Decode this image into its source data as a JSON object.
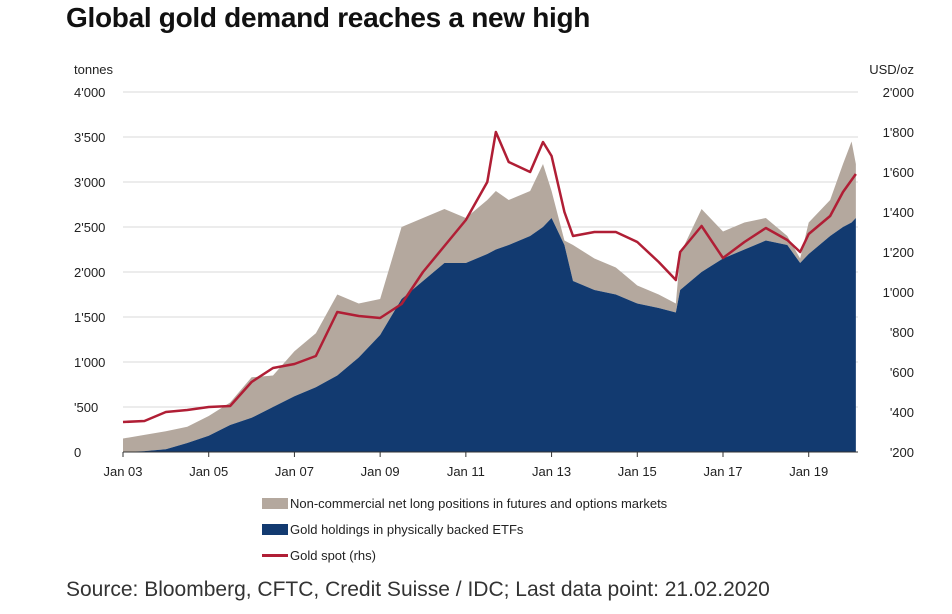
{
  "title": "Global gold demand reaches a new high",
  "source": "Source: Bloomberg, CFTC, Credit Suisse / IDC; Last data point: 21.02.2020",
  "colors": {
    "etf": "#123a70",
    "futures": "#b4a89e",
    "gold": "#b01e35",
    "grid": "#d8d8d8"
  },
  "chart_data": {
    "type": "area",
    "title": "Global gold demand reaches a new high",
    "left_axis": {
      "label": "tonnes",
      "range": [
        0,
        4000
      ],
      "ticks": [
        0,
        500,
        1000,
        1500,
        2000,
        2500,
        3000,
        3500,
        4000
      ],
      "tick_labels": [
        "0",
        "'500",
        "1'000",
        "1'500",
        "2'000",
        "2'500",
        "3'000",
        "3'500",
        "4'000"
      ]
    },
    "right_axis": {
      "label": "USD/oz",
      "range": [
        200,
        2000
      ],
      "ticks": [
        200,
        400,
        600,
        800,
        1000,
        1200,
        1400,
        1600,
        1800,
        2000
      ],
      "tick_labels": [
        "'200",
        "'400",
        "'600",
        "'800",
        "1'000",
        "1'200",
        "1'400",
        "1'600",
        "1'800",
        "2'000"
      ]
    },
    "x_axis": {
      "range": [
        2003.0,
        2020.15
      ],
      "ticks": [
        2003,
        2005,
        2007,
        2009,
        2011,
        2013,
        2015,
        2017,
        2019
      ],
      "tick_labels": [
        "Jan 03",
        "Jan 05",
        "Jan 07",
        "Jan 09",
        "Jan 11",
        "Jan 13",
        "Jan 15",
        "Jan 17",
        "Jan 19"
      ]
    },
    "grid": true,
    "legend_position": "bottom",
    "x": [
      2003.0,
      2003.5,
      2004.0,
      2004.5,
      2005.0,
      2005.5,
      2006.0,
      2006.5,
      2007.0,
      2007.5,
      2008.0,
      2008.5,
      2009.0,
      2009.5,
      2010.0,
      2010.5,
      2011.0,
      2011.5,
      2011.7,
      2012.0,
      2012.5,
      2012.8,
      2013.0,
      2013.3,
      2013.5,
      2014.0,
      2014.5,
      2015.0,
      2015.5,
      2015.9,
      2016.0,
      2016.5,
      2017.0,
      2017.5,
      2018.0,
      2018.5,
      2018.8,
      2019.0,
      2019.5,
      2019.8,
      2020.0,
      2020.1
    ],
    "series": [
      {
        "name": "Non-commercial net long positions in futures and options markets",
        "axis": "left",
        "kind": "stacked_area",
        "values": [
          150,
          180,
          200,
          180,
          220,
          250,
          450,
          350,
          500,
          600,
          900,
          600,
          400,
          800,
          700,
          600,
          500,
          600,
          650,
          500,
          500,
          700,
          300,
          50,
          400,
          350,
          300,
          200,
          150,
          100,
          400,
          700,
          300,
          300,
          250,
          100,
          50,
          350,
          400,
          700,
          900,
          600
        ]
      },
      {
        "name": "Gold holdings in physically backed ETFs",
        "axis": "left",
        "kind": "area",
        "values": [
          0,
          10,
          30,
          100,
          180,
          300,
          380,
          500,
          620,
          720,
          850,
          1050,
          1300,
          1700,
          1900,
          2100,
          2100,
          2200,
          2250,
          2300,
          2400,
          2500,
          2600,
          2300,
          1900,
          1800,
          1750,
          1650,
          1600,
          1550,
          1800,
          2000,
          2150,
          2250,
          2350,
          2300,
          2100,
          2200,
          2400,
          2500,
          2550,
          2600
        ]
      },
      {
        "name": "Gold spot (rhs)",
        "axis": "right",
        "kind": "line",
        "values": [
          350,
          355,
          400,
          410,
          425,
          430,
          550,
          620,
          640,
          680,
          900,
          880,
          870,
          940,
          1100,
          1230,
          1360,
          1550,
          1800,
          1650,
          1600,
          1750,
          1680,
          1400,
          1280,
          1300,
          1300,
          1250,
          1150,
          1060,
          1200,
          1330,
          1170,
          1250,
          1320,
          1260,
          1200,
          1290,
          1380,
          1500,
          1560,
          1590
        ]
      }
    ]
  },
  "legend": [
    {
      "key": "futures",
      "label": "Non-commercial net long positions in futures and options markets"
    },
    {
      "key": "etf",
      "label": "Gold holdings in physically backed ETFs"
    },
    {
      "key": "gold",
      "label": "Gold spot (rhs)"
    }
  ]
}
